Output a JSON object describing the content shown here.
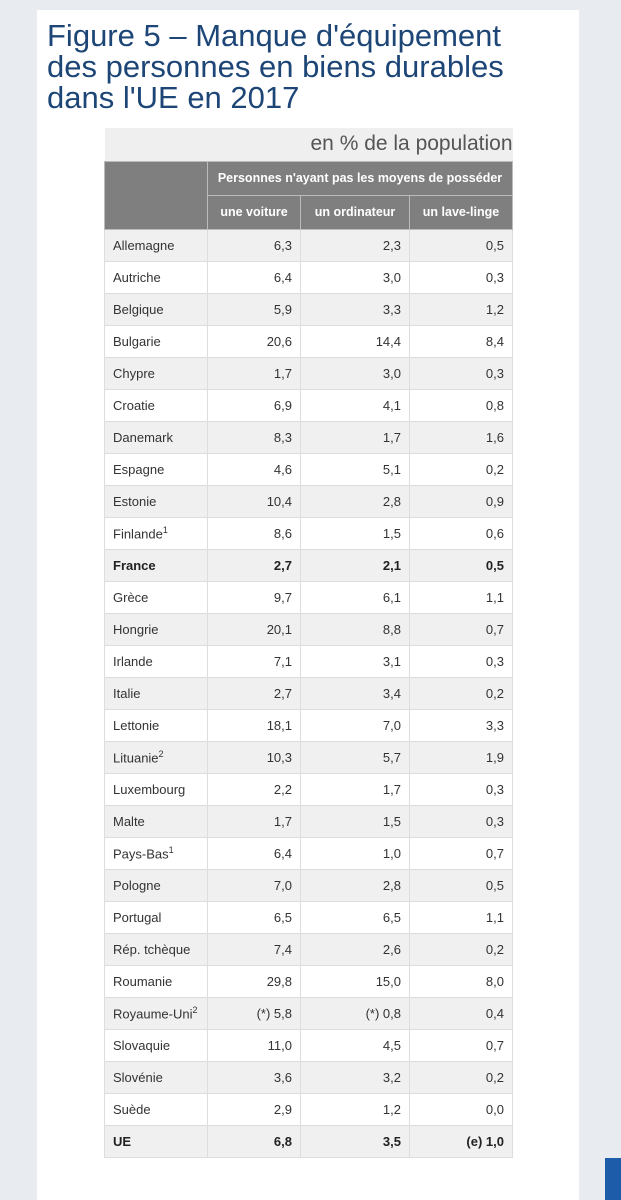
{
  "header": {
    "title": "Figure 5 – Manque d'équipement des personnes en biens durables dans l'UE en 2017"
  },
  "table": {
    "subtitle": "en % de la population",
    "group_header": "Personnes n'ayant pas les moyens de posséder",
    "columns": [
      "une voiture",
      "un ordinateur",
      "un lave-linge"
    ],
    "rows": [
      {
        "country": "Allemagne",
        "values": [
          "6,3",
          "2,3",
          "0,5"
        ]
      },
      {
        "country": "Autriche",
        "values": [
          "6,4",
          "3,0",
          "0,3"
        ]
      },
      {
        "country": "Belgique",
        "values": [
          "5,9",
          "3,3",
          "1,2"
        ]
      },
      {
        "country": "Bulgarie",
        "values": [
          "20,6",
          "14,4",
          "8,4"
        ]
      },
      {
        "country": "Chypre",
        "values": [
          "1,7",
          "3,0",
          "0,3"
        ]
      },
      {
        "country": "Croatie",
        "values": [
          "6,9",
          "4,1",
          "0,8"
        ]
      },
      {
        "country": "Danemark",
        "values": [
          "8,3",
          "1,7",
          "1,6"
        ]
      },
      {
        "country": "Espagne",
        "values": [
          "4,6",
          "5,1",
          "0,2"
        ]
      },
      {
        "country": "Estonie",
        "values": [
          "10,4",
          "2,8",
          "0,9"
        ]
      },
      {
        "country": "Finlande",
        "note": "1",
        "values": [
          "8,6",
          "1,5",
          "0,6"
        ]
      },
      {
        "country": "France",
        "bold": true,
        "values": [
          "2,7",
          "2,1",
          "0,5"
        ]
      },
      {
        "country": "Grèce",
        "values": [
          "9,7",
          "6,1",
          "1,1"
        ]
      },
      {
        "country": "Hongrie",
        "values": [
          "20,1",
          "8,8",
          "0,7"
        ]
      },
      {
        "country": "Irlande",
        "values": [
          "7,1",
          "3,1",
          "0,3"
        ]
      },
      {
        "country": "Italie",
        "values": [
          "2,7",
          "3,4",
          "0,2"
        ]
      },
      {
        "country": "Lettonie",
        "values": [
          "18,1",
          "7,0",
          "3,3"
        ]
      },
      {
        "country": "Lituanie",
        "note": "2",
        "values": [
          "10,3",
          "5,7",
          "1,9"
        ]
      },
      {
        "country": "Luxembourg",
        "values": [
          "2,2",
          "1,7",
          "0,3"
        ]
      },
      {
        "country": "Malte",
        "values": [
          "1,7",
          "1,5",
          "0,3"
        ]
      },
      {
        "country": "Pays-Bas",
        "note": "1",
        "values": [
          "6,4",
          "1,0",
          "0,7"
        ]
      },
      {
        "country": "Pologne",
        "values": [
          "7,0",
          "2,8",
          "0,5"
        ]
      },
      {
        "country": "Portugal",
        "values": [
          "6,5",
          "6,5",
          "1,1"
        ]
      },
      {
        "country": "Rép. tchèque",
        "values": [
          "7,4",
          "2,6",
          "0,2"
        ]
      },
      {
        "country": "Roumanie",
        "values": [
          "29,8",
          "15,0",
          "8,0"
        ]
      },
      {
        "country": "Royaume-Uni",
        "note": "2",
        "values": [
          "(*) 5,8",
          "(*) 0,8",
          "0,4"
        ]
      },
      {
        "country": "Slovaquie",
        "values": [
          "11,0",
          "4,5",
          "0,7"
        ]
      },
      {
        "country": "Slovénie",
        "values": [
          "3,6",
          "3,2",
          "0,2"
        ]
      },
      {
        "country": "Suède",
        "values": [
          "2,9",
          "1,2",
          "0,0"
        ]
      },
      {
        "country": "UE",
        "bold": true,
        "values": [
          "6,8",
          "3,5",
          "(e) 1,0"
        ]
      }
    ]
  }
}
